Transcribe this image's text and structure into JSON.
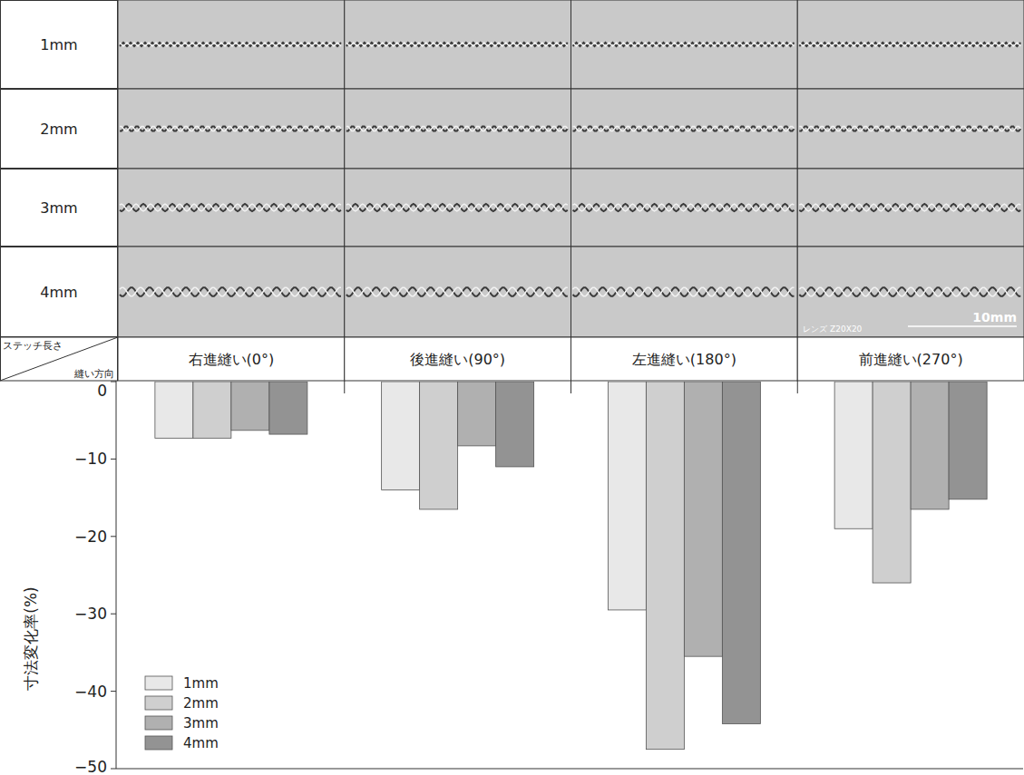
{
  "figure": {
    "row_header": "ステッチ長さ",
    "column_header": "縫い方向",
    "rows": [
      "1mm",
      "2mm",
      "3mm",
      "4mm"
    ],
    "photo_lens_label": "レンズ Z20X20",
    "scale_bar_label": "10mm"
  },
  "chart_data": {
    "type": "bar",
    "y_label": "寸法変化率(%)",
    "categories": [
      "右進縫い(0°)",
      "後進縫い(90°)",
      "左進縫い(180°)",
      "前進縫い(270°)"
    ],
    "series": [
      {
        "name": "1mm",
        "color": "#e8e8e8",
        "values": [
          -7.3,
          -14.0,
          -29.5,
          -19.0
        ]
      },
      {
        "name": "2mm",
        "color": "#cfcfcf",
        "values": [
          -7.3,
          -16.5,
          -47.5,
          -26.0
        ]
      },
      {
        "name": "3mm",
        "color": "#b0b0b0",
        "values": [
          -6.3,
          -8.3,
          -35.5,
          -16.5
        ]
      },
      {
        "name": "4mm",
        "color": "#939393",
        "values": [
          -6.8,
          -11.0,
          -44.2,
          -15.2
        ]
      }
    ],
    "ylim": [
      -50,
      0
    ],
    "yticks": [
      {
        "value": -50,
        "label": "−50"
      },
      {
        "value": -40,
        "label": "−40"
      },
      {
        "value": -30,
        "label": "−30"
      },
      {
        "value": -20,
        "label": "−20"
      },
      {
        "value": -10,
        "label": "−10"
      },
      0
    ],
    "grid": false,
    "legend": "lower left"
  }
}
